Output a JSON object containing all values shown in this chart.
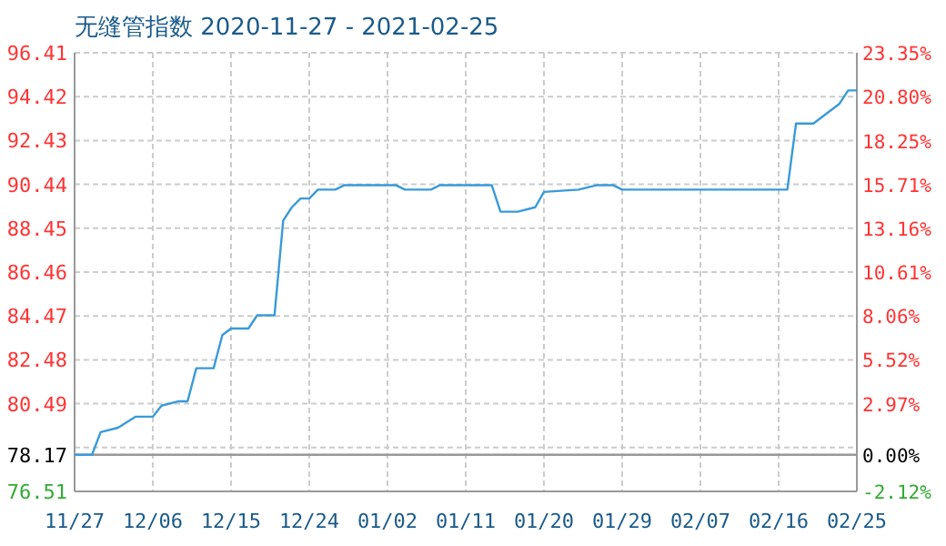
{
  "chart_data": {
    "type": "line",
    "title": "无缝管指数 2020-11-27 - 2021-02-25",
    "x": [
      "2020-11-27",
      "2020-11-29",
      "2020-11-30",
      "2020-12-02",
      "2020-12-04",
      "2020-12-06",
      "2020-12-07",
      "2020-12-09",
      "2020-12-10",
      "2020-12-11",
      "2020-12-13",
      "2020-12-14",
      "2020-12-15",
      "2020-12-17",
      "2020-12-18",
      "2020-12-20",
      "2020-12-21",
      "2020-12-22",
      "2020-12-23",
      "2020-12-24",
      "2020-12-25",
      "2020-12-27",
      "2020-12-28",
      "2021-01-03",
      "2021-01-04",
      "2021-01-07",
      "2021-01-08",
      "2021-01-14",
      "2021-01-15",
      "2021-01-17",
      "2021-01-19",
      "2021-01-20",
      "2021-01-24",
      "2021-01-26",
      "2021-01-28",
      "2021-01-29",
      "2021-02-17",
      "2021-02-18",
      "2021-02-20",
      "2021-02-22",
      "2021-02-23",
      "2021-02-24",
      "2021-02-25"
    ],
    "series": [
      {
        "color": "#3a9ad9",
        "values": [
          78.17,
          78.17,
          79.2,
          79.4,
          79.9,
          79.9,
          80.4,
          80.6,
          80.6,
          82.1,
          82.1,
          83.6,
          83.9,
          83.9,
          84.5,
          84.5,
          88.8,
          89.4,
          89.8,
          89.8,
          90.2,
          90.2,
          90.4,
          90.4,
          90.2,
          90.2,
          90.4,
          90.4,
          89.2,
          89.2,
          89.4,
          90.1,
          90.2,
          90.4,
          90.4,
          90.2,
          90.2,
          93.2,
          93.2,
          93.8,
          94.1,
          94.7,
          94.7
        ]
      }
    ],
    "xlim": [
      "2020-11-27",
      "2021-02-25"
    ],
    "xticks": [
      {
        "value": "2020-11-27",
        "label": "11/27"
      },
      {
        "value": "2020-12-06",
        "label": "12/06"
      },
      {
        "value": "2020-12-15",
        "label": "12/15"
      },
      {
        "value": "2020-12-24",
        "label": "12/24"
      },
      {
        "value": "2021-01-02",
        "label": "01/02"
      },
      {
        "value": "2021-01-11",
        "label": "01/11"
      },
      {
        "value": "2021-01-20",
        "label": "01/20"
      },
      {
        "value": "2021-01-29",
        "label": "01/29"
      },
      {
        "value": "2021-02-07",
        "label": "02/07"
      },
      {
        "value": "2021-02-16",
        "label": "02/16"
      },
      {
        "value": "2021-02-25",
        "label": "02/25"
      }
    ],
    "ylim": [
      76.51,
      96.41
    ],
    "yticks": [
      76.51,
      78.17,
      {
        "value": 78.5,
        "label": null
      },
      80.49,
      82.48,
      84.47,
      86.46,
      88.45,
      90.44,
      92.43,
      94.42,
      96.41
    ],
    "y2lim": [
      -2.12,
      23.35
    ],
    "y2ticks": [
      {
        "value": -2.12,
        "label": "-2.12%"
      },
      {
        "value": 0,
        "label": "0.00%"
      },
      {
        "value": 2.97,
        "label": "2.97%"
      },
      {
        "value": 5.52,
        "label": "5.52%"
      },
      {
        "value": 8.06,
        "label": "8.06%"
      },
      {
        "value": 10.61,
        "label": "10.61%"
      },
      {
        "value": 13.16,
        "label": "13.16%"
      },
      {
        "value": 15.71,
        "label": "15.71%"
      },
      {
        "value": 18.25,
        "label": "18.25%"
      },
      {
        "value": 20.8,
        "label": "20.80%"
      },
      {
        "value": 23.35,
        "label": "23.35%"
      }
    ],
    "ref_lines": [
      {
        "axis": "y",
        "value": 78.17,
        "color": "#999999"
      }
    ],
    "grid": true,
    "marker": "none",
    "line_style": "solid"
  }
}
